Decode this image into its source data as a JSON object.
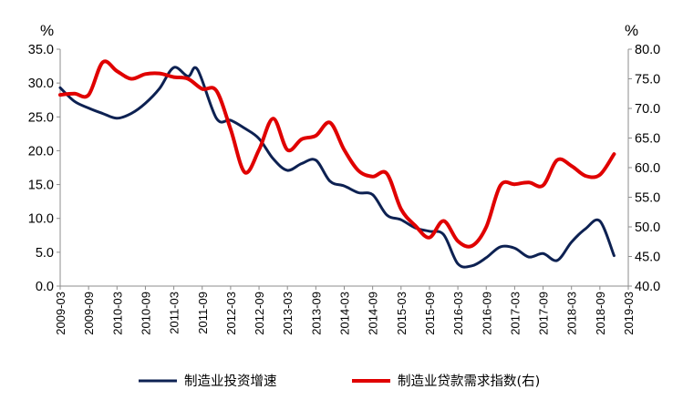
{
  "chart_data": {
    "type": "line",
    "left_axis_unit": "%",
    "right_axis_unit": "%",
    "left_ylim": [
      0,
      35
    ],
    "right_ylim": [
      40,
      80
    ],
    "left_yticks": [
      "0.0",
      "5.0",
      "10.0",
      "15.0",
      "20.0",
      "25.0",
      "30.0",
      "35.0"
    ],
    "right_yticks": [
      "40.0",
      "45.0",
      "50.0",
      "55.0",
      "60.0",
      "65.0",
      "70.0",
      "75.0",
      "80.0"
    ],
    "x_tick_labels": [
      "2009-03",
      "2009-09",
      "2010-03",
      "2010-09",
      "2011-03",
      "2011-09",
      "2012-03",
      "2012-09",
      "2013-03",
      "2013-09",
      "2014-03",
      "2014-09",
      "2015-03",
      "2015-09",
      "2016-03",
      "2016-09",
      "2017-03",
      "2017-09",
      "2018-03",
      "2018-09",
      "2019-03"
    ],
    "grid": false,
    "legend_position": "bottom",
    "series": [
      {
        "name": "制造业投资增速",
        "axis": "left",
        "color": "#0d2152",
        "points": [
          [
            "2009-03",
            29.3
          ],
          [
            "2009-06",
            27.3
          ],
          [
            "2009-09",
            26.3
          ],
          [
            "2009-12",
            25.5
          ],
          [
            "2010-03",
            24.8
          ],
          [
            "2010-06",
            25.5
          ],
          [
            "2010-09",
            27.0
          ],
          [
            "2010-12",
            29.2
          ],
          [
            "2011-03",
            32.3
          ],
          [
            "2011-06",
            31.0
          ],
          [
            "2011-08",
            32.0
          ],
          [
            "2011-12",
            24.8
          ],
          [
            "2012-03",
            24.5
          ],
          [
            "2012-06",
            23.3
          ],
          [
            "2012-09",
            21.8
          ],
          [
            "2012-12",
            18.8
          ],
          [
            "2013-03",
            17.1
          ],
          [
            "2013-06",
            18.1
          ],
          [
            "2013-09",
            18.6
          ],
          [
            "2013-12",
            15.5
          ],
          [
            "2014-03",
            14.8
          ],
          [
            "2014-06",
            13.8
          ],
          [
            "2014-09",
            13.5
          ],
          [
            "2014-12",
            10.5
          ],
          [
            "2015-03",
            9.8
          ],
          [
            "2015-06",
            8.6
          ],
          [
            "2015-09",
            8.1
          ],
          [
            "2015-12",
            7.6
          ],
          [
            "2016-03",
            3.3
          ],
          [
            "2016-06",
            3.0
          ],
          [
            "2016-09",
            4.2
          ],
          [
            "2016-12",
            5.8
          ],
          [
            "2017-03",
            5.6
          ],
          [
            "2017-06",
            4.3
          ],
          [
            "2017-09",
            4.8
          ],
          [
            "2017-12",
            3.8
          ],
          [
            "2018-03",
            6.5
          ],
          [
            "2018-06",
            8.5
          ],
          [
            "2018-09",
            9.6
          ],
          [
            "2018-12",
            4.5
          ]
        ]
      },
      {
        "name": "制造业贷款需求指数(右)",
        "axis": "right",
        "color": "#e00000",
        "points": [
          [
            "2009-03",
            72.3
          ],
          [
            "2009-06",
            72.5
          ],
          [
            "2009-09",
            72.3
          ],
          [
            "2009-12",
            77.8
          ],
          [
            "2010-03",
            76.3
          ],
          [
            "2010-06",
            75.0
          ],
          [
            "2010-09",
            75.8
          ],
          [
            "2010-12",
            75.9
          ],
          [
            "2011-03",
            75.3
          ],
          [
            "2011-06",
            75.0
          ],
          [
            "2011-09",
            73.3
          ],
          [
            "2011-12",
            73.0
          ],
          [
            "2012-03",
            66.5
          ],
          [
            "2012-06",
            59.2
          ],
          [
            "2012-09",
            63.0
          ],
          [
            "2012-12",
            68.3
          ],
          [
            "2013-03",
            63.0
          ],
          [
            "2013-06",
            64.8
          ],
          [
            "2013-09",
            65.4
          ],
          [
            "2013-12",
            67.6
          ],
          [
            "2014-03",
            63.0
          ],
          [
            "2014-06",
            59.5
          ],
          [
            "2014-09",
            58.5
          ],
          [
            "2014-12",
            59.0
          ],
          [
            "2015-03",
            53.0
          ],
          [
            "2015-06",
            50.2
          ],
          [
            "2015-09",
            48.2
          ],
          [
            "2015-12",
            51.0
          ],
          [
            "2016-03",
            47.6
          ],
          [
            "2016-06",
            46.8
          ],
          [
            "2016-09",
            50.0
          ],
          [
            "2016-12",
            57.0
          ],
          [
            "2017-03",
            57.2
          ],
          [
            "2017-06",
            57.5
          ],
          [
            "2017-09",
            57.0
          ],
          [
            "2017-12",
            61.3
          ],
          [
            "2018-03",
            60.3
          ],
          [
            "2018-06",
            58.6
          ],
          [
            "2018-09",
            58.8
          ],
          [
            "2018-12",
            62.3
          ]
        ]
      }
    ]
  }
}
